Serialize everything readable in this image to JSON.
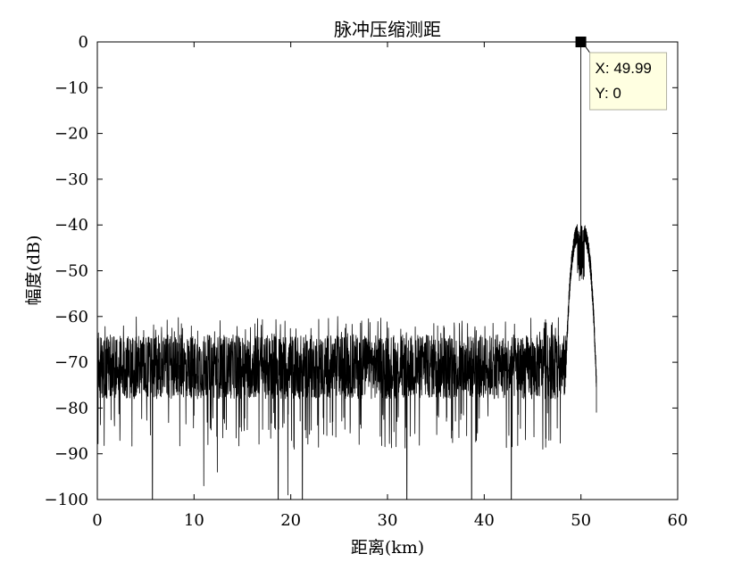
{
  "chart_data": {
    "type": "line",
    "title": "脉冲压缩测距",
    "xlabel": "距离(km)",
    "ylabel": "幅度(dB)",
    "xlim": [
      0,
      60
    ],
    "ylim": [
      -100,
      0
    ],
    "xticks": [
      0,
      10,
      20,
      30,
      40,
      50,
      60
    ],
    "yticks": [
      0,
      -10,
      -20,
      -30,
      -40,
      -50,
      -60,
      -70,
      -80,
      -90,
      -100
    ],
    "xtick_labels": [
      "0",
      "10",
      "20",
      "30",
      "40",
      "50",
      "60"
    ],
    "ytick_labels": [
      "0",
      "−10",
      "−20",
      "−30",
      "−40",
      "−50",
      "−60",
      "−70",
      "−80",
      "−90",
      "−100"
    ],
    "grid": false,
    "line_color": "#000000",
    "noise_floor": {
      "x_range": [
        0,
        48.5
      ],
      "mean_db": -71,
      "upper_peaks_db": -60,
      "deep_nulls": [
        {
          "x": 5.7,
          "y": -100
        },
        {
          "x": 11.0,
          "y": -97
        },
        {
          "x": 12.4,
          "y": -94
        },
        {
          "x": 18.7,
          "y": -100
        },
        {
          "x": 19.7,
          "y": -99
        },
        {
          "x": 21.2,
          "y": -100
        },
        {
          "x": 32.0,
          "y": -100
        },
        {
          "x": 38.7,
          "y": -100
        },
        {
          "x": 42.8,
          "y": -100
        }
      ]
    },
    "sidelobe_region": {
      "x_range": [
        48.5,
        51.6
      ],
      "peak_sidelobe_db": -41
    },
    "main_peak": {
      "x": 49.99,
      "y": 0
    },
    "tail_end": {
      "x": 51.6,
      "y": -81
    },
    "datatip": {
      "x_label": "X: 49.99",
      "y_label": "Y: 0",
      "background": "#ffffe1",
      "marker_color": "#000000"
    }
  }
}
